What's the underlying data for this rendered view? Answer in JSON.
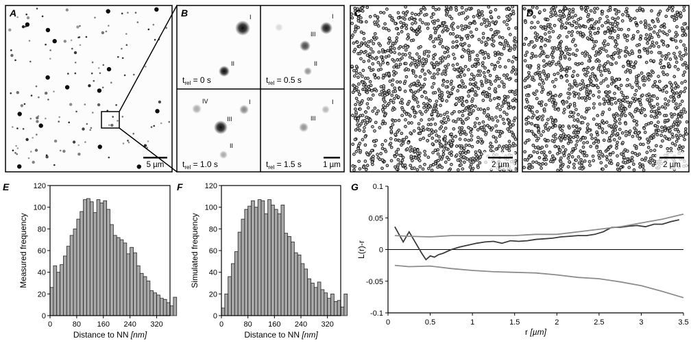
{
  "panels": {
    "A": {
      "letter": "A",
      "scale_label": "5 µm"
    },
    "B": {
      "letter": "B",
      "t_prefix": "t",
      "t_sub": "rel",
      "sub_panels": [
        {
          "time": " = 0 s",
          "spot_labels": [
            "I",
            "II"
          ]
        },
        {
          "time": " = 0.5 s",
          "spot_labels": [
            "I",
            "III",
            "II"
          ]
        },
        {
          "time": " = 1.0 s",
          "spot_labels": [
            "IV",
            "I",
            "III",
            "II"
          ]
        },
        {
          "time": " = 1.5 s",
          "spot_labels": [
            "I",
            "III"
          ]
        }
      ],
      "scale_label": "1 µm"
    },
    "C": {
      "letter": "C",
      "scale_label": "2 µm"
    },
    "D": {
      "letter": "D",
      "scale_label": "2 µm"
    },
    "E": {
      "letter": "E"
    },
    "F": {
      "letter": "F"
    },
    "G": {
      "letter": "G"
    }
  },
  "chart_data": [
    {
      "panel": "E",
      "type": "bar",
      "ylabel": "Measured frequency",
      "xlabel": "Distance to NN",
      "xlabel_unit": "[nm]",
      "xlim": [
        0,
        360
      ],
      "ylim": [
        0,
        120
      ],
      "xticks": [
        0,
        80,
        160,
        240,
        320
      ],
      "yticks": [
        0,
        20,
        40,
        60,
        80,
        100,
        120
      ],
      "bin_width": 10,
      "values": [
        26,
        46,
        40,
        47,
        55,
        64,
        74,
        80,
        89,
        96,
        107,
        108,
        105,
        95,
        107,
        104,
        106,
        98,
        84,
        74,
        72,
        70,
        67,
        57,
        63,
        58,
        46,
        39,
        36,
        32,
        23,
        21,
        19,
        16,
        15,
        12,
        9,
        17
      ]
    },
    {
      "panel": "F",
      "type": "bar",
      "ylabel": "Simulated frequency",
      "xlabel": "Distance to NN",
      "xlabel_unit": "[nm]",
      "xlim": [
        0,
        360
      ],
      "ylim": [
        0,
        120
      ],
      "xticks": [
        0,
        80,
        160,
        240,
        320
      ],
      "yticks": [
        0,
        20,
        40,
        60,
        80,
        100,
        120
      ],
      "bin_width": 10,
      "values": [
        7,
        20,
        36,
        48,
        59,
        77,
        89,
        98,
        101,
        106,
        100,
        107,
        106,
        94,
        107,
        102,
        98,
        94,
        102,
        76,
        73,
        68,
        58,
        56,
        48,
        43,
        34,
        30,
        26,
        31,
        24,
        21,
        16,
        20,
        13,
        14,
        8,
        20
      ]
    },
    {
      "panel": "G",
      "type": "line",
      "ylabel": "L(r)-r",
      "xlabel": "r",
      "xlabel_unit": "[µm]",
      "xlim": [
        0,
        3.5
      ],
      "ylim": [
        -0.1,
        0.1
      ],
      "xticks": [
        0,
        0.5,
        1,
        1.5,
        2,
        2.5,
        3,
        3.5
      ],
      "xtick_labels": [
        "0",
        "0.5",
        "1",
        "1.5",
        "2",
        "2.5",
        "3",
        "3.5"
      ],
      "yticks": [
        -0.1,
        -0.05,
        0,
        0.05,
        0.1
      ],
      "ytick_labels": [
        "-0.1",
        "-0.05",
        "0",
        "0.05",
        "0.1"
      ],
      "zero_line": true,
      "series": [
        {
          "color": "#3a3a3a",
          "x": [
            0.08,
            0.18,
            0.25,
            0.33,
            0.4,
            0.45,
            0.5,
            0.55,
            0.6,
            0.65,
            0.75,
            0.85,
            0.95,
            1.05,
            1.15,
            1.25,
            1.35,
            1.45,
            1.55,
            1.65,
            1.75,
            1.85,
            1.95,
            2.05,
            2.15,
            2.25,
            2.35,
            2.45,
            2.55,
            2.65,
            2.75,
            2.85,
            2.95,
            3.05,
            3.15,
            3.25,
            3.35,
            3.45
          ],
          "values": [
            0.036,
            0.012,
            0.028,
            0.01,
            -0.006,
            -0.016,
            -0.01,
            -0.012,
            -0.008,
            -0.006,
            0.0,
            0.004,
            0.007,
            0.01,
            0.012,
            0.013,
            0.01,
            0.014,
            0.013,
            0.014,
            0.016,
            0.017,
            0.018,
            0.02,
            0.021,
            0.022,
            0.022,
            0.024,
            0.028,
            0.035,
            0.035,
            0.037,
            0.038,
            0.036,
            0.04,
            0.04,
            0.044,
            0.047
          ]
        },
        {
          "color": "#8c8c8c",
          "x": [
            0.08,
            0.25,
            0.5,
            0.75,
            1.0,
            1.25,
            1.5,
            1.75,
            2.0,
            2.25,
            2.5,
            2.75,
            3.0,
            3.25,
            3.5
          ],
          "values": [
            0.022,
            0.021,
            0.02,
            0.022,
            0.022,
            0.022,
            0.022,
            0.024,
            0.024,
            0.028,
            0.032,
            0.036,
            0.042,
            0.048,
            0.056
          ]
        },
        {
          "color": "#8c8c8c",
          "x": [
            0.08,
            0.25,
            0.5,
            0.75,
            1.0,
            1.25,
            1.5,
            1.75,
            2.0,
            2.25,
            2.5,
            2.75,
            3.0,
            3.25,
            3.5
          ],
          "values": [
            -0.025,
            -0.027,
            -0.026,
            -0.03,
            -0.033,
            -0.035,
            -0.036,
            -0.037,
            -0.04,
            -0.044,
            -0.046,
            -0.051,
            -0.057,
            -0.066,
            -0.076
          ]
        }
      ]
    }
  ]
}
